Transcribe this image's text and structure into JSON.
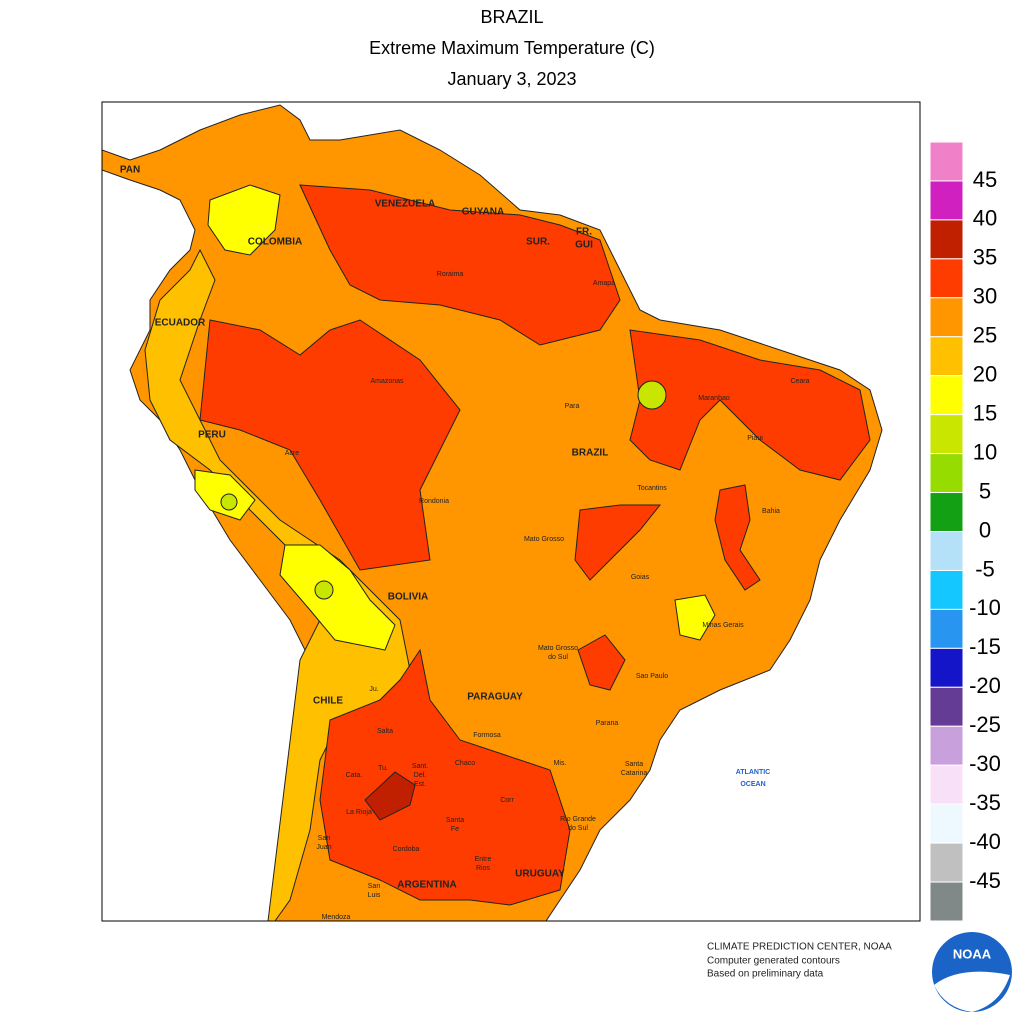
{
  "header": {
    "country": "BRAZIL",
    "title": "Extreme Maximum Temperature (C)",
    "date": "January 3, 2023"
  },
  "legend": {
    "colors": [
      "#f080c8",
      "#d020c0",
      "#c02000",
      "#ff3c00",
      "#ff9600",
      "#ffc000",
      "#ffff00",
      "#c8e600",
      "#96dc00",
      "#14a014",
      "#b4e0f8",
      "#14c8ff",
      "#2896f0",
      "#1414c8",
      "#643c96",
      "#c8a0dc",
      "#f8e0f8",
      "#eef8ff",
      "#c0c0c0",
      "#808888"
    ],
    "labels": [
      45,
      40,
      35,
      30,
      25,
      20,
      15,
      10,
      5,
      0,
      -5,
      -10,
      -15,
      -20,
      -25,
      -30,
      -35,
      -40,
      -45
    ]
  },
  "countries": [
    "PAN",
    "VENEZUELA",
    "GUYANA",
    "SUR.",
    [
      "FR.",
      "GUI"
    ],
    "COLOMBIA",
    "ECUADOR",
    "PERU",
    "BRAZIL",
    "BOLIVIA",
    "PARAGUAY",
    "CHILE",
    "ARGENTINA",
    "URUGUAY"
  ],
  "ocean": [
    "ATLANTIC",
    "OCEAN"
  ],
  "states": [
    "Roraima",
    "Amapa",
    "Amazonas",
    "Para",
    "Maranhao",
    "Ceara",
    "Piaui",
    "Acre",
    "Rondonia",
    "Tocantins",
    "Bahia",
    "Mato Grosso",
    "Goias",
    "Minas Gerais",
    [
      "Mato Grosso",
      "do Sul"
    ],
    "Sao Paulo",
    "Parana",
    [
      "Santa",
      "Catarina"
    ],
    [
      "Rio Grande",
      "do Sul"
    ],
    "Ju.",
    "Salta",
    "Formosa",
    "Tu.",
    "Cata.",
    "Chaco",
    [
      "Sant.",
      "Del.",
      "Est."
    ],
    "Mis.",
    "Corr",
    "La Rioja",
    [
      "Santa",
      "Fe"
    ],
    [
      "Entre",
      "Rios"
    ],
    [
      "San",
      "Juan"
    ],
    "Cordoba",
    [
      "San",
      "Luis"
    ],
    "Mendoza"
  ],
  "footer": {
    "lines": [
      "CLIMATE PREDICTION CENTER, NOAA",
      "Computer generated contours",
      "Based on preliminary data"
    ],
    "logo": "NOAA"
  }
}
